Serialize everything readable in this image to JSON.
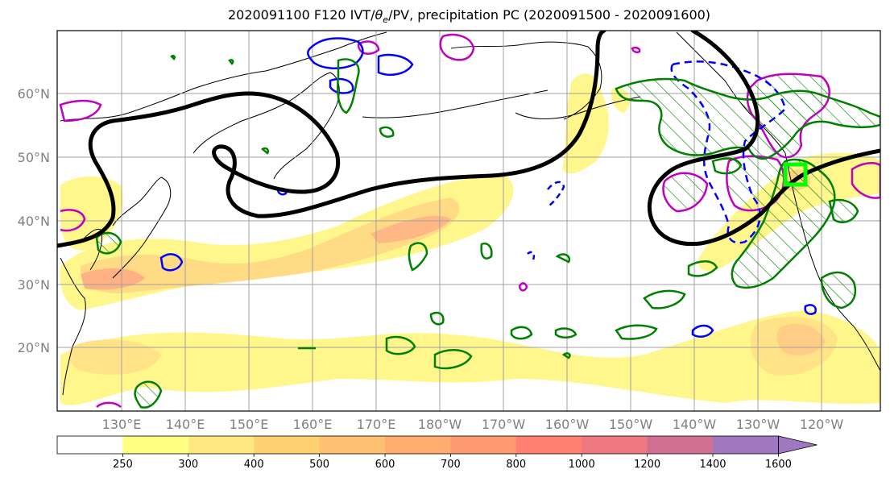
{
  "title": {
    "prefix": "2020091100 F120 IVT/",
    "theta": "θ",
    "sub": "e",
    "suffix": "/PV, precipitation PC (2020091500 - 2020091600)"
  },
  "map": {
    "lon_ticks": [
      "130°E",
      "140°E",
      "150°E",
      "160°E",
      "170°E",
      "180°W",
      "170°W",
      "160°W",
      "150°W",
      "140°W",
      "130°W",
      "120°W"
    ],
    "lat_ticks": [
      "60°N",
      "50°N",
      "40°N",
      "30°N",
      "20°N"
    ],
    "colors": {
      "geopotential_contour": "#000000",
      "theta_e_contour": "#0000ff",
      "pv_contour": "#c000c0",
      "precip_contour": "#008000",
      "target_box": "#00ff00",
      "gridline": "#a0a0a0"
    }
  },
  "colorbar": {
    "labels": [
      "250",
      "300",
      "400",
      "500",
      "600",
      "700",
      "800",
      "1000",
      "1200",
      "1400",
      "1600"
    ],
    "colors": [
      "#ffffff",
      "#ffff80",
      "#ffe880",
      "#ffd070",
      "#ffc070",
      "#ffae70",
      "#ff9a70",
      "#ff8070",
      "#ee7880",
      "#d07090",
      "#a078c0"
    ],
    "extend": "max"
  }
}
